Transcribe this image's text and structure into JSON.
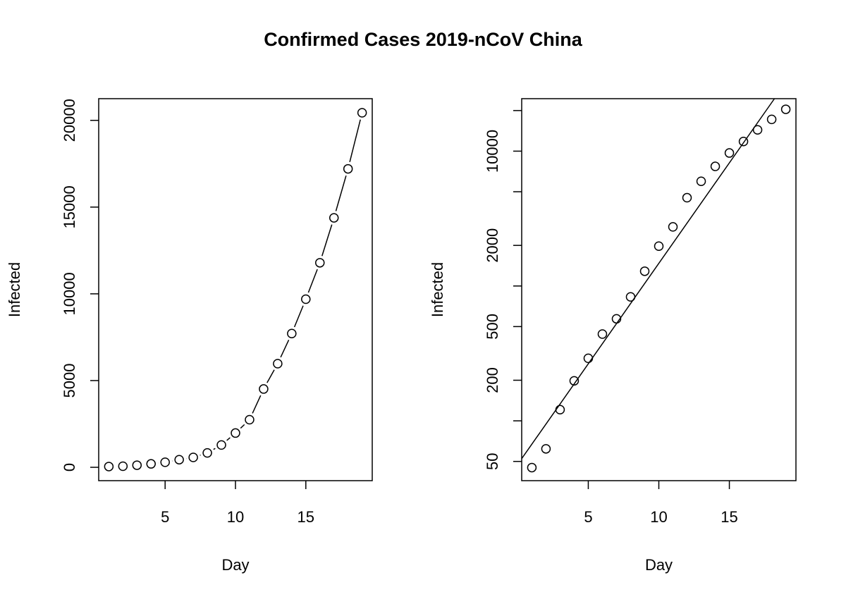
{
  "title": "Confirmed Cases 2019-nCoV China",
  "chart_data": [
    {
      "type": "scatter",
      "xlabel": "Day",
      "ylabel": "Infected",
      "lines": true,
      "x": [
        1,
        2,
        3,
        4,
        5,
        6,
        7,
        8,
        9,
        10,
        11,
        12,
        13,
        14,
        15,
        16,
        17,
        18,
        19
      ],
      "values": [
        45,
        62,
        121,
        198,
        291,
        440,
        571,
        830,
        1287,
        1975,
        2744,
        4515,
        5974,
        7711,
        9692,
        11791,
        14380,
        17205,
        20438
      ],
      "xlim": [
        0.28,
        19.72
      ],
      "xticks": [
        5,
        10,
        15
      ],
      "ylim": [
        -770,
        21250
      ],
      "yticks": [
        0,
        5000,
        10000,
        15000,
        20000
      ],
      "log_y": false,
      "color": "#000000"
    },
    {
      "type": "scatter",
      "xlabel": "Day",
      "ylabel": "Infected",
      "lines": false,
      "x": [
        1,
        2,
        3,
        4,
        5,
        6,
        7,
        8,
        9,
        10,
        11,
        12,
        13,
        14,
        15,
        16,
        17,
        18,
        19
      ],
      "values": [
        45,
        62,
        121,
        198,
        291,
        440,
        571,
        830,
        1287,
        1975,
        2744,
        4515,
        5974,
        7711,
        9692,
        11791,
        14380,
        17205,
        20438
      ],
      "xlim": [
        0.28,
        19.72
      ],
      "xticks": [
        5,
        10,
        15
      ],
      "ylim": [
        36,
        24500
      ],
      "yticks": [
        50,
        200,
        500,
        2000,
        10000
      ],
      "yticks_minor": [
        100,
        1000,
        5000,
        20000
      ],
      "log_y": true,
      "color": "#000000",
      "trend_line": {
        "intercept_log10": 1.678,
        "slope_log10": 0.149
      }
    }
  ]
}
